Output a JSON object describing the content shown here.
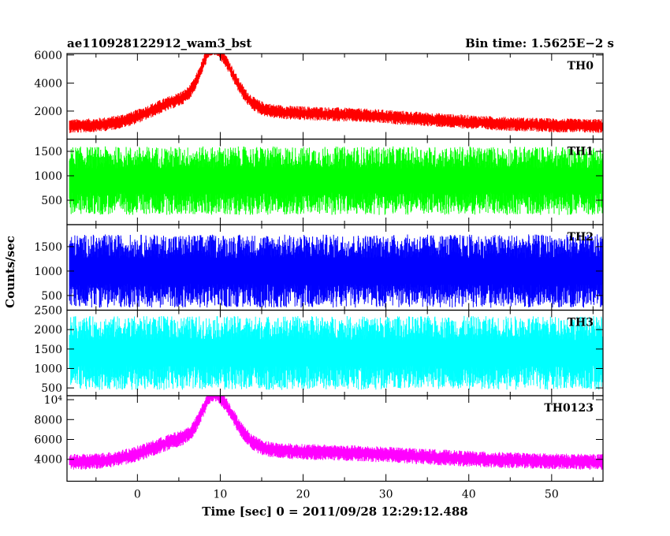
{
  "header": {
    "title": "ae110928122912_wam3_bst",
    "bin_time": "Bin time: 1.5625E−2 s"
  },
  "axes": {
    "xlabel": "Time [sec] 0 = 2011/09/28 12:29:12.488",
    "ylabel": "Counts/sec"
  },
  "chart_data": {
    "type": "line",
    "x_range": [
      -8.2,
      56.2
    ],
    "xlim": [
      -8.5,
      56.2
    ],
    "xticks": [
      0,
      10,
      20,
      30,
      40,
      50
    ],
    "xtick_labels": [
      "0",
      "10",
      "20",
      "30",
      "40",
      "50"
    ],
    "bin_time_s": 0.015625,
    "panels": [
      {
        "name": "TH0",
        "color": "#ff0000",
        "ylim": [
          0,
          6100
        ],
        "yticks": [
          2000,
          4000,
          6000
        ],
        "ytick_labels": [
          "2000",
          "4000",
          "6000"
        ],
        "baseline": 900,
        "noise": 500,
        "peaks": [
          {
            "t": 9.2,
            "amp": 3600,
            "rise": 1.4,
            "decay": 2.2
          },
          {
            "t": 6.5,
            "amp": 1700,
            "rise": 4.5,
            "decay": 5.0
          },
          {
            "t": 20.0,
            "amp": 900,
            "rise": 10.0,
            "decay": 14.0
          }
        ]
      },
      {
        "name": "TH1",
        "color": "#00ff00",
        "ylim": [
          0,
          1750
        ],
        "yticks": [
          500,
          1000,
          1500
        ],
        "ytick_labels": [
          "500",
          "1000",
          "1500"
        ],
        "baseline": 900,
        "noise": 700,
        "peaks": []
      },
      {
        "name": "TH2",
        "color": "#0000ff",
        "ylim": [
          200,
          1950
        ],
        "yticks": [
          500,
          1000,
          1500
        ],
        "ytick_labels": [
          "500",
          "1000",
          "1500"
        ],
        "baseline": 1000,
        "noise": 750,
        "peaks": []
      },
      {
        "name": "TH3",
        "color": "#00ffff",
        "ylim": [
          300,
          2500
        ],
        "yticks": [
          500,
          1000,
          1500,
          2000,
          2500
        ],
        "ytick_labels": [
          "500",
          "1000",
          "1500",
          "2000",
          "2500"
        ],
        "baseline": 1400,
        "noise": 950,
        "peaks": []
      },
      {
        "name": "TH0123",
        "color": "#ff00ff",
        "ylim": [
          1800,
          10400
        ],
        "yticks": [
          4000,
          6000,
          8000,
          10000
        ],
        "ytick_labels": [
          "4000",
          "6000",
          "8000",
          "10⁴"
        ],
        "baseline": 3700,
        "noise": 800,
        "peaks": [
          {
            "t": 9.3,
            "amp": 4500,
            "rise": 1.4,
            "decay": 2.2
          },
          {
            "t": 6.5,
            "amp": 2100,
            "rise": 4.5,
            "decay": 5.0
          },
          {
            "t": 20.0,
            "amp": 1000,
            "rise": 10.0,
            "decay": 14.0
          }
        ]
      }
    ]
  }
}
